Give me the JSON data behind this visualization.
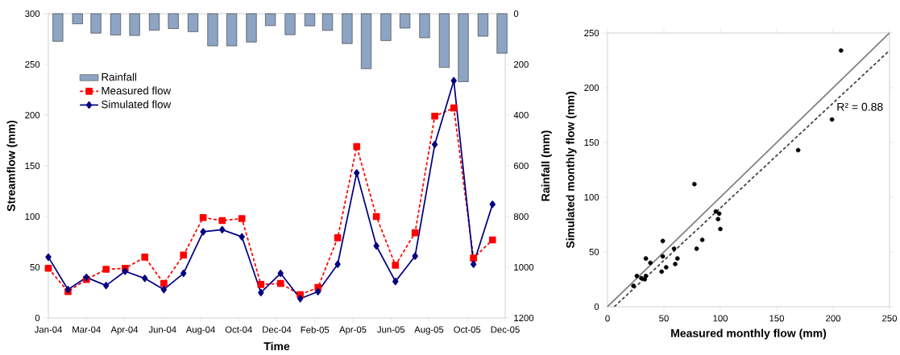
{
  "chart_data": [
    {
      "type": "line",
      "xlabel": "Time",
      "ylabel": "Streamflow (mm)",
      "y2label": "Rainfall (mm)",
      "x": [
        "2004-01",
        "2004-02",
        "2004-03",
        "2004-04",
        "2004-05",
        "2004-06",
        "2004-07",
        "2004-08",
        "2004-09",
        "2004-10",
        "2004-11",
        "2004-12",
        "2005-01",
        "2005-02",
        "2005-03",
        "2005-04",
        "2005-05",
        "2005-06",
        "2005-07",
        "2005-08",
        "2005-09",
        "2005-10",
        "2005-11",
        "2005-12"
      ],
      "xlim": [
        "2004-01-01",
        "2005-12-21"
      ],
      "xticks": [
        {
          "value": "2004-01-01",
          "label": "Jan-04"
        },
        {
          "value": "2004-03-01",
          "label": "Mar-04"
        },
        {
          "value": "2004-04-30",
          "label": "Apr-04"
        },
        {
          "value": "2004-06-29",
          "label": "Jun-04"
        },
        {
          "value": "2004-08-28",
          "label": "Aug-04"
        },
        {
          "value": "2004-10-27",
          "label": "Oct-04"
        },
        {
          "value": "2004-12-26",
          "label": "Dec-04"
        },
        {
          "value": "2005-02-24",
          "label": "Feb-05"
        },
        {
          "value": "2005-04-25",
          "label": "Apr-05"
        },
        {
          "value": "2005-06-24",
          "label": "Jun-05"
        },
        {
          "value": "2005-08-23",
          "label": "Aug-05"
        },
        {
          "value": "2005-10-22",
          "label": "Oct-05"
        },
        {
          "value": "2005-12-21",
          "label": "Dec-05"
        }
      ],
      "ylim": [
        0,
        300
      ],
      "yticks": [
        0,
        50,
        100,
        150,
        200,
        250,
        300
      ],
      "y2lim": [
        1200,
        0
      ],
      "y2ticks": [
        0,
        200,
        400,
        600,
        800,
        1000,
        1200
      ],
      "legend": "top left",
      "series": [
        {
          "name": "Rainfall",
          "type": "bar",
          "axis": "y2",
          "color": "#8ea4c4",
          "x": [
            "2004-01-16",
            "2004-02-16",
            "2004-03-16",
            "2004-04-16",
            "2004-05-16",
            "2004-06-16",
            "2004-07-16",
            "2004-08-16",
            "2004-09-16",
            "2004-10-16",
            "2004-11-16",
            "2004-12-16",
            "2005-01-16",
            "2005-02-16",
            "2005-03-16",
            "2005-04-16",
            "2005-05-16",
            "2005-06-16",
            "2005-07-16",
            "2005-08-16",
            "2005-09-16",
            "2005-10-16",
            "2005-11-16",
            "2005-12-16"
          ],
          "values": [
            109,
            40,
            77,
            84,
            86,
            65,
            59,
            71,
            127,
            127,
            112,
            47,
            83,
            48,
            66,
            118,
            217,
            106,
            57,
            95,
            212,
            268,
            89,
            156
          ]
        },
        {
          "name": "Measured flow",
          "color": "#ff0000",
          "marker": "square",
          "line_style": "dashed",
          "values": [
            49,
            26,
            38,
            48,
            49,
            60,
            34,
            62,
            99,
            96,
            98,
            33,
            34,
            23,
            30,
            79,
            169,
            100,
            52,
            84,
            199,
            207,
            59,
            77
          ]
        },
        {
          "name": "Simulated flow",
          "color": "#000080",
          "marker": "diamond",
          "line_style": "solid",
          "values": [
            60,
            28,
            40,
            32,
            46,
            39,
            28,
            44,
            85,
            87,
            80,
            25,
            44,
            19,
            26,
            53,
            143,
            71,
            36,
            61,
            171,
            234,
            53,
            112
          ]
        }
      ]
    },
    {
      "type": "scatter",
      "xlabel": "Measured monthly flow (mm)",
      "ylabel": "Simulated monthly flow (mm)",
      "xlim": [
        0,
        250
      ],
      "xticks": [
        0,
        50,
        100,
        150,
        200,
        250
      ],
      "ylim": [
        0,
        250
      ],
      "yticks": [
        0,
        50,
        100,
        150,
        200,
        250
      ],
      "annotations": [
        "R² = 0.88"
      ],
      "series": [
        {
          "color": "#000000",
          "marker": "circle",
          "x": [
            49,
            26,
            38,
            48,
            49,
            60,
            34,
            62,
            99,
            96,
            98,
            33,
            34,
            23,
            30,
            79,
            169,
            100,
            52,
            84,
            199,
            207,
            59,
            77
          ],
          "values": [
            60,
            28,
            40,
            32,
            46,
            39,
            28,
            44,
            85,
            87,
            80,
            25,
            44,
            19,
            26,
            53,
            143,
            71,
            36,
            61,
            171,
            234,
            53,
            112
          ]
        },
        {
          "type": "line",
          "color": "#808080",
          "line_style": "solid",
          "x": [
            0,
            250
          ],
          "values": [
            0,
            250
          ]
        },
        {
          "type": "line",
          "color": "#404040",
          "line_style": "dashed",
          "x": [
            6,
            250
          ],
          "values": [
            0,
            234
          ]
        }
      ]
    }
  ]
}
